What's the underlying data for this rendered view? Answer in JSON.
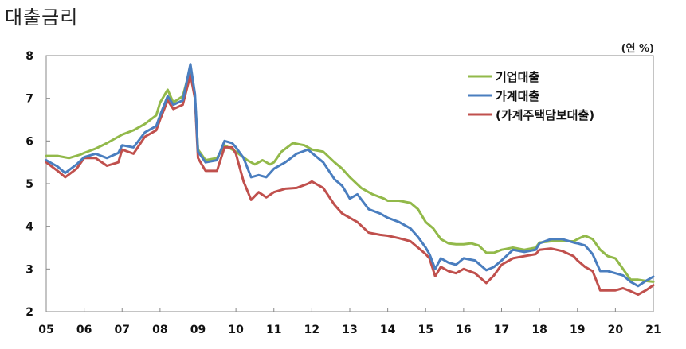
{
  "page": {
    "title": "대출금리",
    "unit": "(연 %)"
  },
  "chart_data": {
    "type": "line",
    "title": "대출금리",
    "xlabel": "",
    "ylabel": "",
    "unit": "(연 %)",
    "ylim": [
      2,
      8
    ],
    "y_ticks": [
      2,
      3,
      4,
      5,
      6,
      7,
      8
    ],
    "x_ticks": [
      "05",
      "06",
      "07",
      "08",
      "09",
      "10",
      "11",
      "12",
      "13",
      "14",
      "15",
      "16",
      "17",
      "18",
      "19",
      "20",
      "21"
    ],
    "xlim": [
      2005.0,
      2021.0
    ],
    "grid": false,
    "legend_position": "top-right",
    "series": [
      {
        "name": "기업대출",
        "color": "#92b94a",
        "points": [
          [
            2005.0,
            5.65
          ],
          [
            2005.3,
            5.65
          ],
          [
            2005.6,
            5.6
          ],
          [
            2005.9,
            5.68
          ],
          [
            2006.0,
            5.72
          ],
          [
            2006.3,
            5.82
          ],
          [
            2006.6,
            5.95
          ],
          [
            2006.9,
            6.1
          ],
          [
            2007.0,
            6.15
          ],
          [
            2007.3,
            6.25
          ],
          [
            2007.6,
            6.4
          ],
          [
            2007.9,
            6.6
          ],
          [
            2008.0,
            6.9
          ],
          [
            2008.2,
            7.2
          ],
          [
            2008.35,
            6.9
          ],
          [
            2008.6,
            7.05
          ],
          [
            2008.8,
            7.7
          ],
          [
            2008.92,
            7.0
          ],
          [
            2009.0,
            5.8
          ],
          [
            2009.2,
            5.55
          ],
          [
            2009.5,
            5.6
          ],
          [
            2009.7,
            5.9
          ],
          [
            2009.9,
            5.8
          ],
          [
            2010.0,
            5.75
          ],
          [
            2010.3,
            5.55
          ],
          [
            2010.5,
            5.45
          ],
          [
            2010.7,
            5.55
          ],
          [
            2010.9,
            5.45
          ],
          [
            2011.0,
            5.5
          ],
          [
            2011.2,
            5.75
          ],
          [
            2011.5,
            5.95
          ],
          [
            2011.8,
            5.9
          ],
          [
            2012.0,
            5.8
          ],
          [
            2012.3,
            5.75
          ],
          [
            2012.6,
            5.5
          ],
          [
            2012.8,
            5.35
          ],
          [
            2013.0,
            5.15
          ],
          [
            2013.3,
            4.9
          ],
          [
            2013.6,
            4.75
          ],
          [
            2013.9,
            4.65
          ],
          [
            2014.0,
            4.6
          ],
          [
            2014.3,
            4.6
          ],
          [
            2014.6,
            4.55
          ],
          [
            2014.8,
            4.4
          ],
          [
            2015.0,
            4.1
          ],
          [
            2015.2,
            3.95
          ],
          [
            2015.4,
            3.7
          ],
          [
            2015.6,
            3.6
          ],
          [
            2015.8,
            3.58
          ],
          [
            2016.0,
            3.58
          ],
          [
            2016.2,
            3.6
          ],
          [
            2016.4,
            3.55
          ],
          [
            2016.6,
            3.38
          ],
          [
            2016.8,
            3.38
          ],
          [
            2017.0,
            3.45
          ],
          [
            2017.3,
            3.5
          ],
          [
            2017.6,
            3.45
          ],
          [
            2017.9,
            3.5
          ],
          [
            2018.0,
            3.62
          ],
          [
            2018.3,
            3.65
          ],
          [
            2018.6,
            3.65
          ],
          [
            2018.9,
            3.65
          ],
          [
            2019.0,
            3.7
          ],
          [
            2019.2,
            3.78
          ],
          [
            2019.4,
            3.7
          ],
          [
            2019.6,
            3.45
          ],
          [
            2019.8,
            3.3
          ],
          [
            2020.0,
            3.25
          ],
          [
            2020.2,
            3.0
          ],
          [
            2020.4,
            2.75
          ],
          [
            2020.6,
            2.75
          ],
          [
            2020.8,
            2.72
          ],
          [
            2021.0,
            2.7
          ]
        ]
      },
      {
        "name": "가계대출",
        "color": "#4a7ebf",
        "points": [
          [
            2005.0,
            5.55
          ],
          [
            2005.3,
            5.4
          ],
          [
            2005.5,
            5.25
          ],
          [
            2005.8,
            5.45
          ],
          [
            2006.0,
            5.62
          ],
          [
            2006.3,
            5.7
          ],
          [
            2006.6,
            5.6
          ],
          [
            2006.9,
            5.72
          ],
          [
            2007.0,
            5.9
          ],
          [
            2007.3,
            5.85
          ],
          [
            2007.6,
            6.2
          ],
          [
            2007.9,
            6.35
          ],
          [
            2008.0,
            6.6
          ],
          [
            2008.2,
            7.05
          ],
          [
            2008.35,
            6.85
          ],
          [
            2008.6,
            6.95
          ],
          [
            2008.8,
            7.8
          ],
          [
            2008.92,
            7.1
          ],
          [
            2009.0,
            5.75
          ],
          [
            2009.2,
            5.5
          ],
          [
            2009.5,
            5.55
          ],
          [
            2009.7,
            6.0
          ],
          [
            2009.9,
            5.95
          ],
          [
            2010.0,
            5.85
          ],
          [
            2010.2,
            5.6
          ],
          [
            2010.4,
            5.15
          ],
          [
            2010.6,
            5.2
          ],
          [
            2010.8,
            5.15
          ],
          [
            2011.0,
            5.35
          ],
          [
            2011.3,
            5.5
          ],
          [
            2011.6,
            5.7
          ],
          [
            2011.9,
            5.8
          ],
          [
            2012.0,
            5.72
          ],
          [
            2012.3,
            5.5
          ],
          [
            2012.6,
            5.1
          ],
          [
            2012.8,
            4.95
          ],
          [
            2013.0,
            4.65
          ],
          [
            2013.2,
            4.75
          ],
          [
            2013.5,
            4.4
          ],
          [
            2013.8,
            4.3
          ],
          [
            2014.0,
            4.2
          ],
          [
            2014.3,
            4.1
          ],
          [
            2014.6,
            3.95
          ],
          [
            2014.8,
            3.75
          ],
          [
            2015.0,
            3.5
          ],
          [
            2015.1,
            3.35
          ],
          [
            2015.25,
            3.0
          ],
          [
            2015.4,
            3.25
          ],
          [
            2015.6,
            3.15
          ],
          [
            2015.8,
            3.1
          ],
          [
            2016.0,
            3.25
          ],
          [
            2016.3,
            3.2
          ],
          [
            2016.6,
            2.97
          ],
          [
            2016.8,
            3.05
          ],
          [
            2017.0,
            3.2
          ],
          [
            2017.3,
            3.45
          ],
          [
            2017.6,
            3.4
          ],
          [
            2017.9,
            3.45
          ],
          [
            2018.0,
            3.6
          ],
          [
            2018.3,
            3.7
          ],
          [
            2018.6,
            3.7
          ],
          [
            2018.9,
            3.62
          ],
          [
            2019.0,
            3.6
          ],
          [
            2019.2,
            3.55
          ],
          [
            2019.4,
            3.35
          ],
          [
            2019.6,
            2.95
          ],
          [
            2019.8,
            2.95
          ],
          [
            2020.0,
            2.9
          ],
          [
            2020.2,
            2.85
          ],
          [
            2020.4,
            2.7
          ],
          [
            2020.6,
            2.6
          ],
          [
            2020.8,
            2.72
          ],
          [
            2021.0,
            2.82
          ]
        ]
      },
      {
        "name": "(가계주택담보대출)",
        "color": "#c0504d",
        "points": [
          [
            2005.0,
            5.5
          ],
          [
            2005.3,
            5.3
          ],
          [
            2005.5,
            5.15
          ],
          [
            2005.8,
            5.35
          ],
          [
            2006.0,
            5.6
          ],
          [
            2006.3,
            5.6
          ],
          [
            2006.6,
            5.42
          ],
          [
            2006.9,
            5.5
          ],
          [
            2007.0,
            5.8
          ],
          [
            2007.3,
            5.7
          ],
          [
            2007.6,
            6.1
          ],
          [
            2007.9,
            6.25
          ],
          [
            2008.0,
            6.5
          ],
          [
            2008.2,
            6.95
          ],
          [
            2008.35,
            6.75
          ],
          [
            2008.6,
            6.85
          ],
          [
            2008.8,
            7.55
          ],
          [
            2008.92,
            7.0
          ],
          [
            2009.0,
            5.6
          ],
          [
            2009.2,
            5.3
          ],
          [
            2009.5,
            5.3
          ],
          [
            2009.7,
            5.85
          ],
          [
            2009.9,
            5.85
          ],
          [
            2010.0,
            5.7
          ],
          [
            2010.2,
            5.05
          ],
          [
            2010.4,
            4.62
          ],
          [
            2010.6,
            4.8
          ],
          [
            2010.8,
            4.68
          ],
          [
            2011.0,
            4.8
          ],
          [
            2011.3,
            4.88
          ],
          [
            2011.6,
            4.9
          ],
          [
            2011.9,
            5.0
          ],
          [
            2012.0,
            5.05
          ],
          [
            2012.3,
            4.9
          ],
          [
            2012.6,
            4.5
          ],
          [
            2012.8,
            4.3
          ],
          [
            2013.0,
            4.2
          ],
          [
            2013.2,
            4.1
          ],
          [
            2013.5,
            3.85
          ],
          [
            2013.8,
            3.8
          ],
          [
            2014.0,
            3.78
          ],
          [
            2014.3,
            3.72
          ],
          [
            2014.6,
            3.65
          ],
          [
            2014.8,
            3.5
          ],
          [
            2015.0,
            3.35
          ],
          [
            2015.1,
            3.25
          ],
          [
            2015.25,
            2.83
          ],
          [
            2015.4,
            3.05
          ],
          [
            2015.6,
            2.95
          ],
          [
            2015.8,
            2.9
          ],
          [
            2016.0,
            3.0
          ],
          [
            2016.3,
            2.9
          ],
          [
            2016.6,
            2.67
          ],
          [
            2016.8,
            2.85
          ],
          [
            2017.0,
            3.1
          ],
          [
            2017.3,
            3.25
          ],
          [
            2017.6,
            3.3
          ],
          [
            2017.9,
            3.35
          ],
          [
            2018.0,
            3.45
          ],
          [
            2018.3,
            3.48
          ],
          [
            2018.6,
            3.42
          ],
          [
            2018.9,
            3.3
          ],
          [
            2019.0,
            3.2
          ],
          [
            2019.2,
            3.05
          ],
          [
            2019.4,
            2.95
          ],
          [
            2019.6,
            2.5
          ],
          [
            2019.8,
            2.5
          ],
          [
            2020.0,
            2.5
          ],
          [
            2020.2,
            2.55
          ],
          [
            2020.4,
            2.48
          ],
          [
            2020.6,
            2.4
          ],
          [
            2020.8,
            2.5
          ],
          [
            2021.0,
            2.62
          ]
        ]
      }
    ]
  }
}
